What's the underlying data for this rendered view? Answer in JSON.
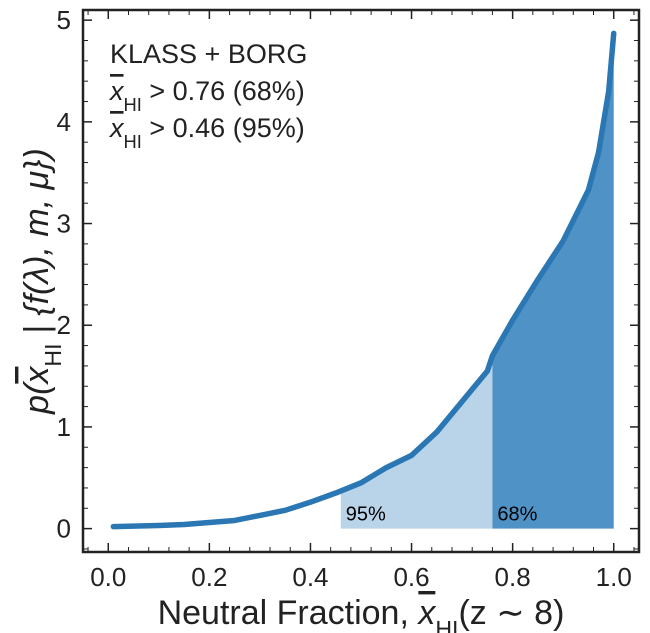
{
  "chart_data": {
    "type": "line",
    "x_label": {
      "prefix": "Neutral Fraction, ",
      "symbol": "x",
      "subscript": "HI",
      "suffix": "(z ∼ 8)"
    },
    "y_label": {
      "prefix": "p(",
      "symbol": "x",
      "subscript": "HI",
      "suffix": " | {f(λ), m, μ})"
    },
    "annotation": {
      "title": "KLASS + BORG",
      "lines": [
        {
          "symbol": "x",
          "subscript": "HI",
          "text": " > 0.76 (68%)"
        },
        {
          "symbol": "x",
          "subscript": "HI",
          "text": " > 0.46 (95%)"
        }
      ]
    },
    "x": [
      0.01,
      0.05,
      0.1,
      0.15,
      0.2,
      0.25,
      0.3,
      0.35,
      0.4,
      0.45,
      0.5,
      0.55,
      0.6,
      0.65,
      0.7,
      0.75,
      0.76,
      0.8,
      0.85,
      0.9,
      0.95,
      0.97,
      0.99,
      1.0
    ],
    "series": [
      {
        "color": "#2a77b4",
        "values": [
          0.02,
          0.025,
          0.03,
          0.04,
          0.06,
          0.08,
          0.13,
          0.18,
          0.26,
          0.35,
          0.45,
          0.6,
          0.72,
          0.95,
          1.25,
          1.55,
          1.7,
          2.05,
          2.45,
          2.83,
          3.33,
          3.7,
          4.3,
          4.87
        ]
      }
    ],
    "shaded_regions": [
      {
        "label": "95%",
        "from": 0.46,
        "to": 0.76,
        "color": "#b9d3e8"
      },
      {
        "label": "68%",
        "from": 0.76,
        "to": 1.0,
        "color": "#4f93c6"
      }
    ],
    "xlim": [
      -0.05,
      1.05
    ],
    "ylim": [
      -0.23,
      5.1
    ],
    "xticks": [
      {
        "value": 0,
        "label": "0.0"
      },
      0.2,
      0.4,
      0.6,
      0.8,
      {
        "value": 1,
        "label": "1.0"
      }
    ],
    "yticks": [
      0,
      1,
      2,
      3,
      4,
      5
    ],
    "xticks_minor": [
      -0.04,
      0.04,
      0.08,
      0.12,
      0.16,
      0.24,
      0.28,
      0.32,
      0.36,
      0.44,
      0.48,
      0.52,
      0.56,
      0.64,
      0.68,
      0.72,
      0.76,
      0.84,
      0.88,
      0.92,
      0.96,
      1.04
    ],
    "yticks_minor": [
      -0.2,
      0.2,
      0.4,
      0.6,
      0.8,
      1.2,
      1.4,
      1.6,
      1.8,
      2.2,
      2.4,
      2.6,
      2.8,
      3.2,
      3.4,
      3.6,
      3.8,
      4.2,
      4.4,
      4.6,
      4.8
    ]
  }
}
